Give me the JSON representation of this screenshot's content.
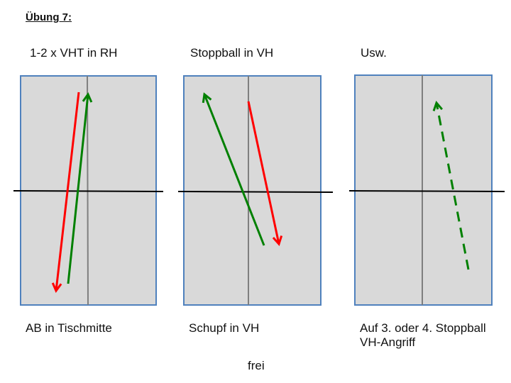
{
  "title": "Übung 7:",
  "columns": [
    {
      "top_label": "1-2 x VHT in RH",
      "bottom_label": "AB in Tischmitte"
    },
    {
      "top_label": "Stoppball in VH",
      "bottom_label": "Schupf in VH"
    },
    {
      "top_label": "Usw.",
      "bottom_label_line1": "Auf 3. oder 4. Stoppball",
      "bottom_label_line2": "VH-Angriff"
    }
  ],
  "footer": "frei",
  "colors": {
    "table_fill": "#d9d9d9",
    "table_border": "#4f81bd",
    "centerline": "#7f7f7f",
    "net": "#000000",
    "arrow_red": "#ff0000",
    "arrow_green": "#008000"
  }
}
